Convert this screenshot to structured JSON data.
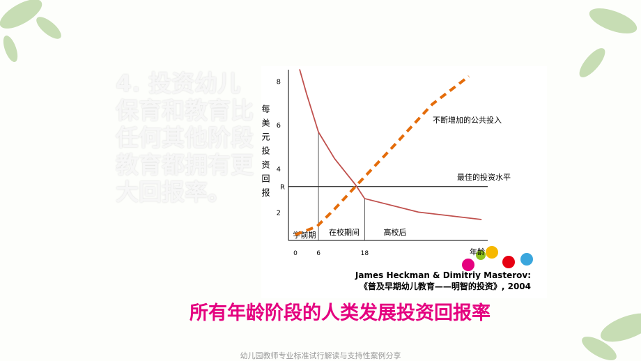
{
  "slide": {
    "side_text": "4. 投资幼儿保育和教育比任何其他阶段教育都拥有更大回报率。",
    "headline": "所有年龄阶段的人类发展投资回报率",
    "footer": "幼儿园教师专业标准试行解读与支持性案例分享"
  },
  "chart_data": {
    "type": "line",
    "y_label": "每美元投资回报",
    "x_label": "年龄",
    "annotations": [
      "学前期",
      "在校期间",
      "高校后"
    ],
    "reference_line": {
      "name": "最佳的投资水平"
    },
    "citation": [
      "James  Heckman & Dimitriy Masterov:",
      "《普及早期幼儿教育——明智的投资》, 2004"
    ],
    "series": [
      {
        "color": "#c0504d",
        "x": [
          1.1,
          2.9,
          6,
          10.2,
          15.6,
          18,
          32,
          48.4
        ],
        "values": [
          8.55,
          7.43,
          5.67,
          4.45,
          3.26,
          2.62,
          2.0,
          1.66
        ]
      },
      {
        "name": "不断增加的公共投入",
        "color": "#e46c0a",
        "dashed": true,
        "x": [
          0,
          5.6,
          10.2,
          15.6,
          24.7,
          35.6,
          45.1
        ],
        "values": [
          0.96,
          1.34,
          2.14,
          3.17,
          4.87,
          6.95,
          8.23
        ]
      }
    ],
    "xlim": [
      -1.8,
      50
    ],
    "xticks": [
      0,
      6,
      18
    ],
    "ylim": [
      0.7,
      8.5
    ],
    "yticks": [
      2,
      4,
      6,
      8,
      {
        "value": 3.17,
        "label": "R"
      }
    ]
  }
}
